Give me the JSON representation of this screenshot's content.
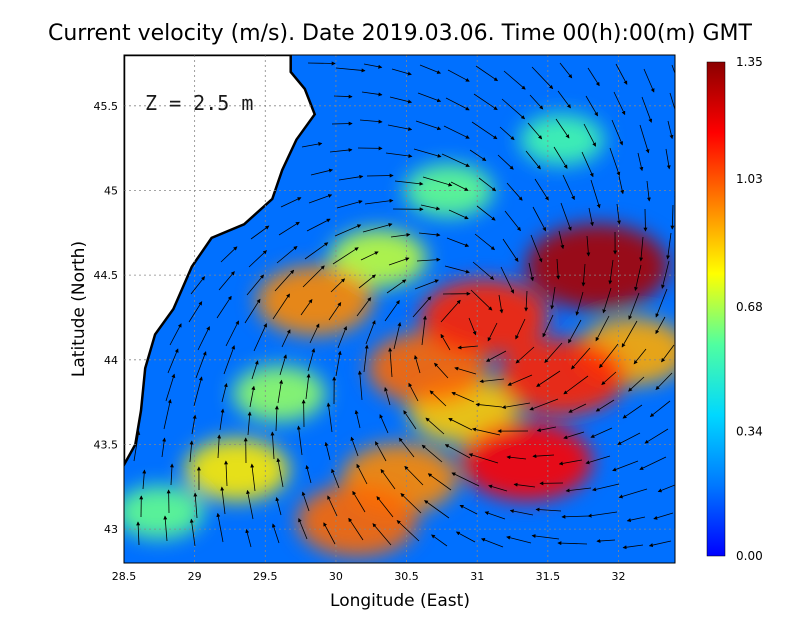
{
  "chart_data": {
    "type": "heatmap",
    "title": "Current velocity (m/s). Date 2019.03.06. Time 00(h):00(m) GMT",
    "depth_label": "Z = 2.5 m",
    "xlabel": "Longitude (East)",
    "ylabel": "Latitude (North)",
    "xlim": [
      28.5,
      32.4
    ],
    "ylim": [
      42.8,
      45.8
    ],
    "x_ticks": [
      "28.5",
      "29",
      "29.5",
      "30",
      "30.5",
      "31",
      "31.5",
      "32"
    ],
    "y_ticks": [
      "43",
      "43.5",
      "44",
      "44.5",
      "45",
      "45.5"
    ],
    "grid": true,
    "colorbar": {
      "min": 0.0,
      "max": 1.35,
      "ticks": [
        "0.00",
        "0.34",
        "0.68",
        "1.03",
        "1.35"
      ],
      "colormap": [
        "#0000ff",
        "#0078ff",
        "#00d8ff",
        "#50ffa0",
        "#ffff00",
        "#ff8000",
        "#ff0000",
        "#8b0000"
      ]
    },
    "hotspots": [
      {
        "lon": 31.85,
        "lat": 44.55,
        "speed": 1.3
      },
      {
        "lon": 31.35,
        "lat": 43.4,
        "speed": 1.15
      },
      {
        "lon": 31.05,
        "lat": 44.25,
        "speed": 1.1
      },
      {
        "lon": 31.6,
        "lat": 43.9,
        "speed": 1.1
      },
      {
        "lon": 30.65,
        "lat": 43.95,
        "speed": 1.0
      },
      {
        "lon": 30.15,
        "lat": 43.05,
        "speed": 1.0
      },
      {
        "lon": 30.45,
        "lat": 43.3,
        "speed": 0.95
      },
      {
        "lon": 29.85,
        "lat": 44.35,
        "speed": 0.95
      },
      {
        "lon": 30.9,
        "lat": 43.7,
        "speed": 0.85
      },
      {
        "lon": 29.3,
        "lat": 43.35,
        "speed": 0.8
      },
      {
        "lon": 32.1,
        "lat": 44.05,
        "speed": 0.9
      },
      {
        "lon": 30.3,
        "lat": 44.6,
        "speed": 0.7
      },
      {
        "lon": 30.8,
        "lat": 45.0,
        "speed": 0.6
      },
      {
        "lon": 31.6,
        "lat": 45.3,
        "speed": 0.55
      },
      {
        "lon": 29.6,
        "lat": 43.8,
        "speed": 0.65
      },
      {
        "lon": 28.75,
        "lat": 43.1,
        "speed": 0.6
      }
    ],
    "background_speed": 0.18,
    "coastline": [
      [
        29.68,
        45.7
      ],
      [
        29.78,
        45.6
      ],
      [
        29.85,
        45.45
      ],
      [
        29.72,
        45.3
      ],
      [
        29.62,
        45.12
      ],
      [
        29.55,
        44.95
      ],
      [
        29.35,
        44.8
      ],
      [
        29.12,
        44.72
      ],
      [
        28.98,
        44.55
      ],
      [
        28.85,
        44.3
      ],
      [
        28.72,
        44.15
      ],
      [
        28.65,
        43.95
      ],
      [
        28.62,
        43.7
      ],
      [
        28.58,
        43.5
      ],
      [
        28.5,
        43.38
      ]
    ]
  }
}
